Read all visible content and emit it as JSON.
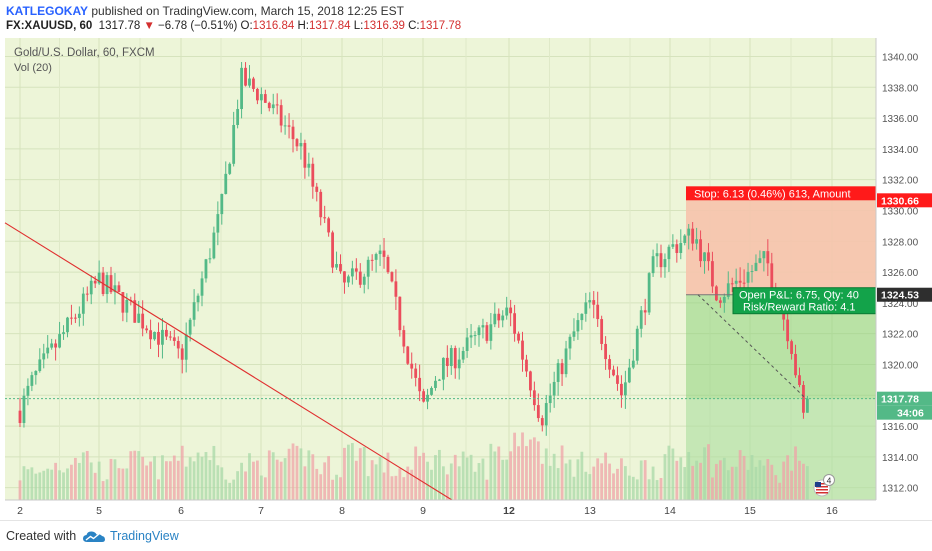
{
  "header": {
    "author": "KATLEGOKAY",
    "published_text": " published on TradingView.com, March 15, 2018 12:25 EST",
    "symbol": "FX:XAUUSD, 60",
    "last": "1317.78",
    "arrow": "▼",
    "change": "−6.78 (−0.51%)",
    "o_label": "O:",
    "o_value": "1316.84",
    "h_label": "H:",
    "h_value": "1317.84",
    "l_label": "L:",
    "l_value": "1316.39",
    "c_label": "C:",
    "c_value": "1317.78"
  },
  "legend": {
    "title": "Gold/U.S. Dollar, 60, FXCM",
    "volume": "Vol (20)"
  },
  "price_tags": {
    "stop": "1330.66",
    "entry": "1324.53",
    "last": "1317.78",
    "countdown": "34:06"
  },
  "position_labels": {
    "stop": "Stop: 6.13 (0.46%) 613, Amount",
    "open_pl": "Open P&L: 6.75, Qty: 40",
    "risk_reward": "Risk/Reward Ratio: 4.1"
  },
  "badge": {
    "count": "4",
    "icon": "us-flag-icon"
  },
  "footer": {
    "created_with": "Created with",
    "brand": "TradingView",
    "logo_icon": "tradingview-cloud-icon"
  },
  "colors": {
    "background": "#edf5d8",
    "bull": "#53b987",
    "bear": "#eb4d5c",
    "stop_zone": "#f6c3ac",
    "target_zone": "#8ed17c",
    "stop_tag": "#ff1a1a",
    "entry_tag": "#00b33c",
    "last_tag": "#53b987",
    "trendline": "#e02f2f",
    "tradingview_blue": "#2a83c4"
  },
  "chart_data": {
    "type": "candlestick",
    "y_axis": {
      "side": "right",
      "ticks": [
        "1312.00",
        "1314.00",
        "1316.00",
        "1318.00",
        "1320.00",
        "1322.00",
        "1324.00",
        "1326.00",
        "1328.00",
        "1330.00",
        "1332.00",
        "1334.00",
        "1336.00",
        "1338.00",
        "1340.00"
      ],
      "ylim": [
        1311.2,
        1341.2
      ]
    },
    "x_axis": {
      "ticks": [
        "2",
        "5",
        "6",
        "7",
        "8",
        "9",
        "12",
        "13",
        "14",
        "15",
        "16"
      ]
    },
    "grid": true,
    "series": [
      {
        "kind": "price",
        "approx_path": [
          {
            "t": "2",
            "price": 1317.0
          },
          {
            "t": "2.5",
            "price": 1319.0
          },
          {
            "t": "5",
            "price": 1325.5
          },
          {
            "t": "5.5",
            "price": 1323.0
          },
          {
            "t": "6",
            "price": 1320.5
          },
          {
            "t": "6.5",
            "price": 1330.0
          },
          {
            "t": "6.75",
            "price": 1338.5
          },
          {
            "t": "7",
            "price": 1337.5
          },
          {
            "t": "7.5",
            "price": 1334.0
          },
          {
            "t": "8",
            "price": 1325.0
          },
          {
            "t": "8.5",
            "price": 1327.0
          },
          {
            "t": "8.8",
            "price": 1321.0
          },
          {
            "t": "9",
            "price": 1317.0
          },
          {
            "t": "9.5",
            "price": 1319.5
          },
          {
            "t": "12",
            "price": 1323.5
          },
          {
            "t": "12.4",
            "price": 1316.5
          },
          {
            "t": "12.8",
            "price": 1322.0
          },
          {
            "t": "13",
            "price": 1324.0
          },
          {
            "t": "13.4",
            "price": 1318.0
          },
          {
            "t": "13.8",
            "price": 1326.5
          },
          {
            "t": "14",
            "price": 1327.5
          },
          {
            "t": "14.3",
            "price": 1328.5
          },
          {
            "t": "14.6",
            "price": 1324.5
          },
          {
            "t": "15",
            "price": 1326.0
          },
          {
            "t": "15.2",
            "price": 1326.8
          },
          {
            "t": "15.5",
            "price": 1321.5
          },
          {
            "t": "15.65",
            "price": 1316.5
          },
          {
            "t": "15.7",
            "price": 1317.78
          }
        ]
      },
      {
        "kind": "volume",
        "name": "Vol (20)",
        "approx_relative_levels": [
          0.25,
          0.4,
          0.55,
          0.3,
          0.45,
          0.35,
          0.5,
          0.6,
          0.3,
          0.4,
          0.45,
          0.55,
          0.35,
          0.65,
          0.4,
          0.3,
          0.5,
          0.45,
          0.35,
          0.6,
          0.9,
          0.55,
          0.4,
          0.45,
          0.3,
          0.35,
          0.5,
          0.6,
          0.4,
          0.45,
          0.3,
          0.5
        ]
      }
    ],
    "position": {
      "type": "long",
      "entry": 1324.53,
      "stop": 1330.66,
      "open_pl": 6.75,
      "qty": 40,
      "risk_reward": 4.1
    },
    "last_price": 1317.78
  }
}
